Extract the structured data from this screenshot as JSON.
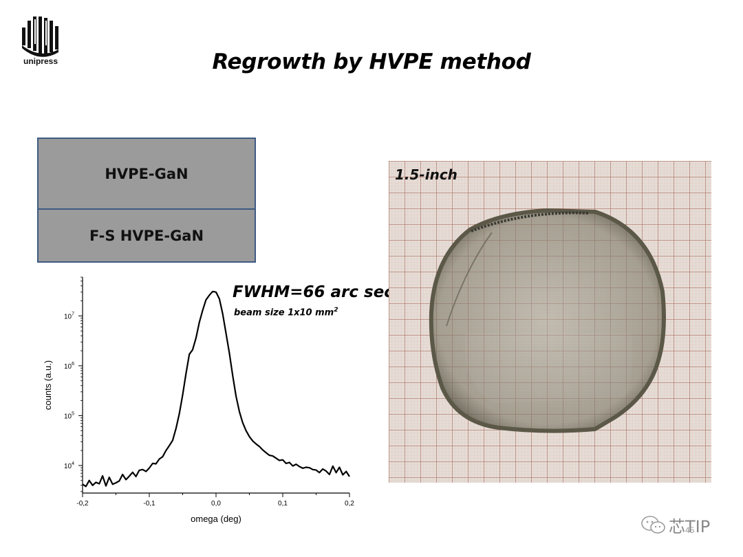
{
  "logo": {
    "text": "unipress"
  },
  "slide": {
    "title": "Regrowth by HVPE method",
    "page": "45"
  },
  "stack": {
    "top_layer": "HVPE-GaN",
    "bottom_layer": "F-S HVPE-GaN",
    "fill": "#9b9b9b",
    "border": "#3d5a84"
  },
  "annotation": {
    "fwhm": "FWHM=66 arc sec",
    "beam_prefix": "beam size 1x10 mm",
    "beam_sup": "2"
  },
  "photo": {
    "label": "1.5-inch",
    "grid_color": "#b07a6a"
  },
  "watermark": {
    "text": "芯TIP",
    "icon": "wechat-icon"
  },
  "chart_data": {
    "type": "line",
    "xlabel": "omega (deg)",
    "ylabel": "counts (a.u.)",
    "xlim": [
      -0.2,
      0.2
    ],
    "ylim": [
      2800,
      60000000
    ],
    "yscale": "log",
    "x_ticks": [
      "-0,2",
      "-0,1",
      "0,0",
      "0,1",
      "0,2"
    ],
    "x_tick_values": [
      -0.2,
      -0.1,
      0.0,
      0.1,
      0.2
    ],
    "y_ticks": [
      {
        "base": "10",
        "exp": "4",
        "value": 10000
      },
      {
        "base": "10",
        "exp": "5",
        "value": 100000
      },
      {
        "base": "10",
        "exp": "6",
        "value": 1000000
      },
      {
        "base": "10",
        "exp": "7",
        "value": 10000000
      }
    ],
    "series": [
      {
        "x": [
          -0.2,
          -0.195,
          -0.19,
          -0.185,
          -0.18,
          -0.175,
          -0.17,
          -0.165,
          -0.16,
          -0.155,
          -0.15,
          -0.145,
          -0.14,
          -0.135,
          -0.13,
          -0.125,
          -0.12,
          -0.115,
          -0.11,
          -0.105,
          -0.1,
          -0.095,
          -0.09,
          -0.085,
          -0.08,
          -0.075,
          -0.07,
          -0.065,
          -0.06,
          -0.055,
          -0.05,
          -0.045,
          -0.04,
          -0.035,
          -0.03,
          -0.025,
          -0.02,
          -0.015,
          -0.01,
          -0.005,
          0.0,
          0.005,
          0.01,
          0.015,
          0.02,
          0.025,
          0.03,
          0.035,
          0.04,
          0.045,
          0.05,
          0.055,
          0.06,
          0.065,
          0.07,
          0.075,
          0.08,
          0.085,
          0.09,
          0.095,
          0.1,
          0.105,
          0.11,
          0.115,
          0.12,
          0.125,
          0.13,
          0.135,
          0.14,
          0.145,
          0.15,
          0.155,
          0.16,
          0.165,
          0.17,
          0.175,
          0.18,
          0.185,
          0.19,
          0.195,
          0.2
        ],
        "y": [
          4200,
          3800,
          5000,
          4000,
          4600,
          4300,
          6200,
          3900,
          5800,
          4200,
          4500,
          4900,
          6600,
          5200,
          6100,
          7300,
          6000,
          8000,
          8300,
          7600,
          8900,
          11000,
          10800,
          13500,
          15000,
          20000,
          25000,
          32000,
          55000,
          110000,
          260000,
          700000,
          1700000,
          2100000,
          3600000,
          7500000,
          13000000,
          21000000,
          26000000,
          31000000,
          30000000,
          22000000,
          11000000,
          4500000,
          1800000,
          630000,
          245000,
          120000,
          72000,
          50000,
          38000,
          31000,
          27000,
          24000,
          20500,
          18000,
          16000,
          15500,
          14000,
          12600,
          13000,
          11000,
          11500,
          9800,
          10600,
          9500,
          8800,
          9200,
          9000,
          8300,
          8100,
          7200,
          8500,
          7700,
          6600,
          9700,
          7200,
          9200,
          6500,
          7600,
          6000
        ]
      }
    ]
  }
}
